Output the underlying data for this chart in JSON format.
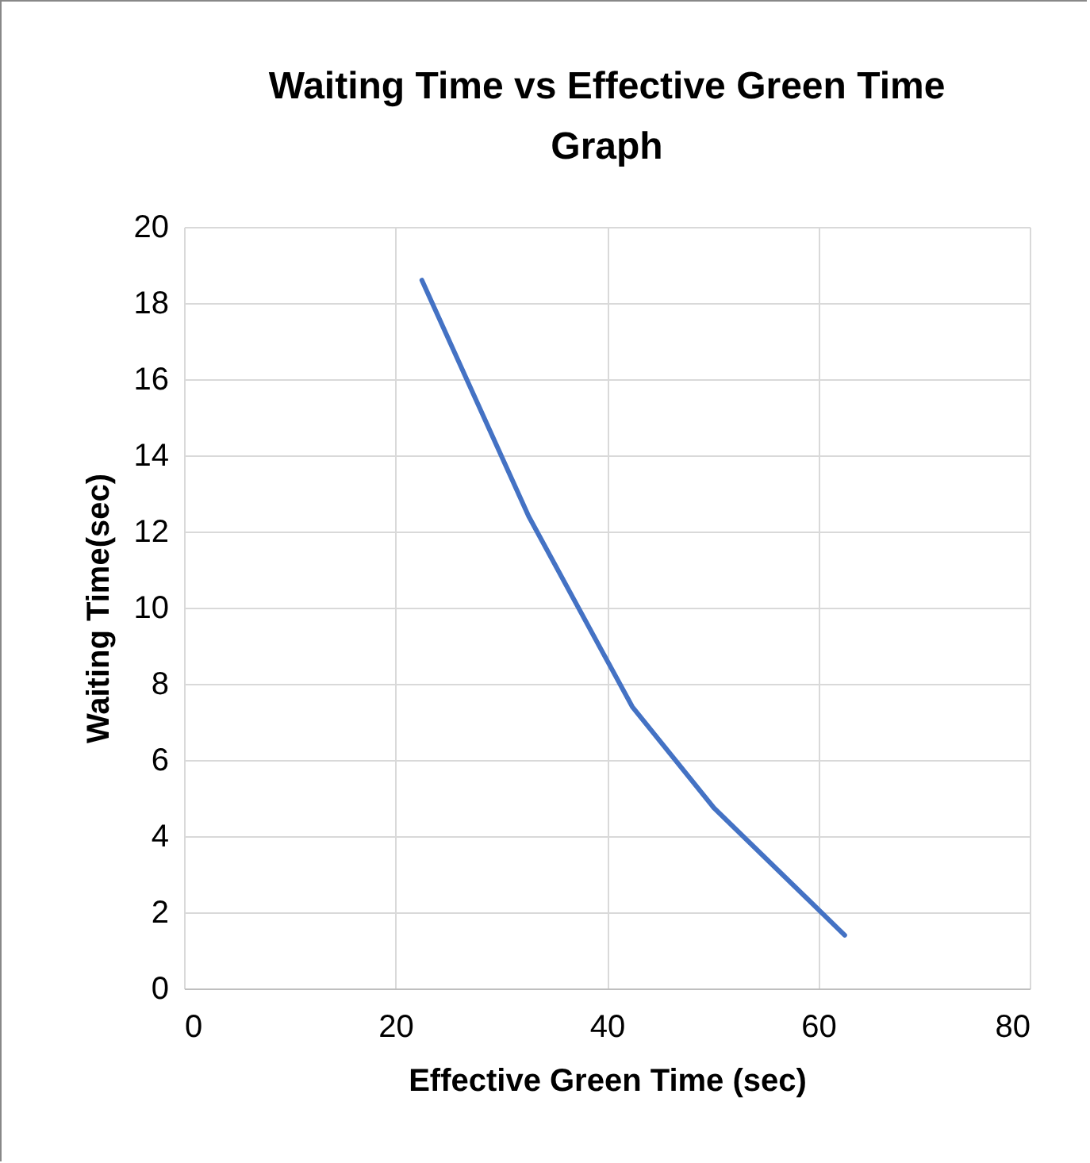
{
  "chart_data": {
    "type": "line",
    "title": "Waiting Time vs Effective Green Time Graph",
    "xlabel": "Effective Green Time (sec)",
    "ylabel": "Waiting Time(sec)",
    "x": [
      22.5,
      32.6,
      42.4,
      50.1,
      62.5
    ],
    "series": [
      {
        "color": "#4472c4",
        "values": [
          18.6,
          12.4,
          7.4,
          4.75,
          1.4
        ]
      }
    ],
    "xlim": [
      0,
      80
    ],
    "xticks": [
      0,
      20,
      40,
      60,
      80
    ],
    "ylim": [
      0,
      20
    ],
    "yticks": [
      0,
      2,
      4,
      6,
      8,
      10,
      12,
      14,
      16,
      18,
      20
    ],
    "grid": true,
    "marker": "none",
    "line_style": "solid"
  }
}
